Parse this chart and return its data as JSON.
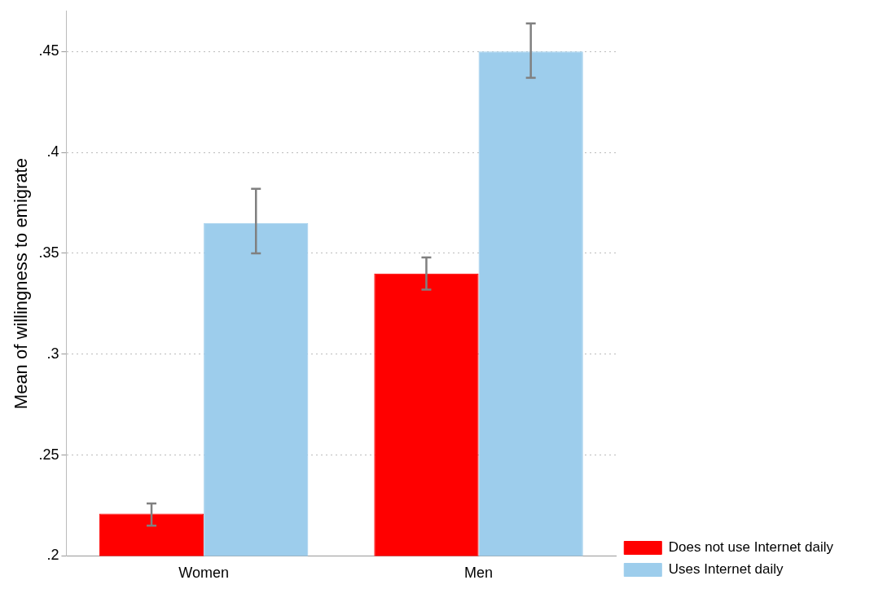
{
  "chart_data": {
    "type": "bar",
    "ylabel": "Mean of willingness to emigrate",
    "categories": [
      "Women",
      "Men"
    ],
    "series": [
      {
        "name": "Does not use Internet daily",
        "color": "#ff0000",
        "values": [
          0.221,
          0.34
        ],
        "errors": [
          [
            0.215,
            0.226
          ],
          [
            0.332,
            0.348
          ]
        ]
      },
      {
        "name": "Uses Internet daily",
        "color": "#9dcdec",
        "values": [
          0.365,
          0.45
        ],
        "errors": [
          [
            0.35,
            0.382
          ],
          [
            0.437,
            0.464
          ]
        ]
      }
    ],
    "ylim": [
      0.2,
      0.47
    ],
    "yticks": [
      {
        "value": 0.2,
        "label": ".2"
      },
      {
        "value": 0.25,
        "label": ".25"
      },
      {
        "value": 0.3,
        "label": ".3"
      },
      {
        "value": 0.35,
        "label": ".35"
      },
      {
        "value": 0.4,
        "label": ".4"
      },
      {
        "value": 0.45,
        "label": ".45"
      }
    ],
    "grid": "y",
    "legend": "bottom right"
  }
}
